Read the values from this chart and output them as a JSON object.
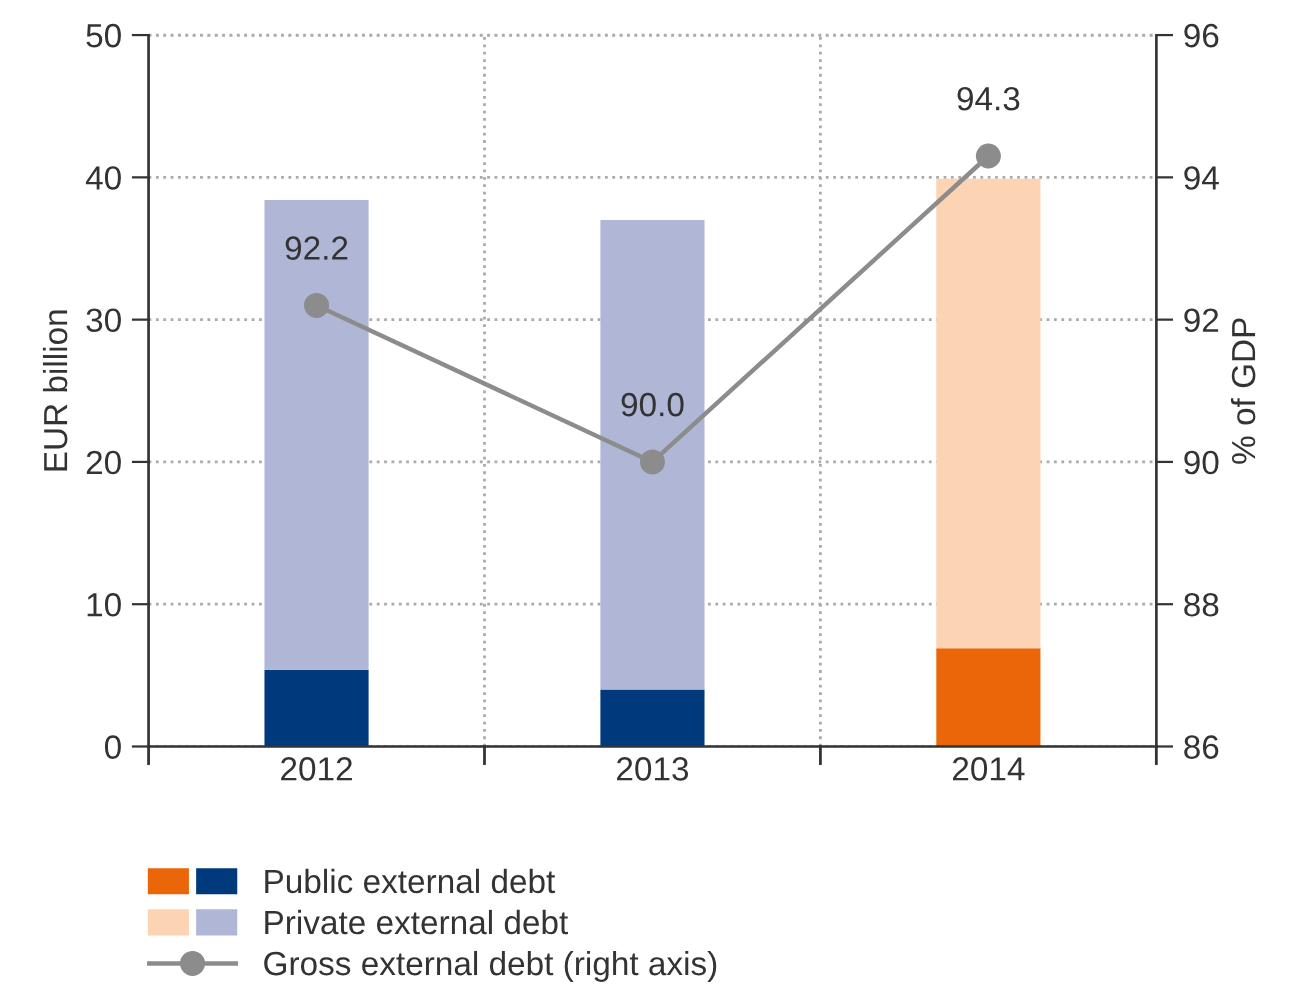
{
  "chart_data": {
    "type": "bar",
    "stacked": true,
    "categories": [
      "2012",
      "2013",
      "2014"
    ],
    "ylabel": "EUR billion",
    "y2label": "% of GDP",
    "ylim": [
      0,
      50
    ],
    "yticks": [
      0,
      10,
      20,
      30,
      40,
      50
    ],
    "y2lim": [
      86,
      96
    ],
    "y2ticks": [
      86,
      88,
      90,
      92,
      94,
      96
    ],
    "grid": true,
    "legend": "bottom",
    "series": [
      {
        "name": "Public external debt",
        "values": [
          5.4,
          4.0,
          6.9
        ],
        "colors": [
          "#003a7d",
          "#003a7d",
          "#eb6608"
        ]
      },
      {
        "name": "Private external debt",
        "values": [
          33.0,
          33.0,
          33.0
        ],
        "colors": [
          "#b0b7d6",
          "#b0b7d6",
          "#fcd3b3"
        ]
      },
      {
        "name": "Gross external debt (right axis)",
        "type": "line",
        "axis": "y2",
        "color": "#8c8c8c",
        "marker": "circle",
        "values": [
          92.2,
          90.0,
          94.3
        ],
        "value_labels": [
          "92.2",
          "90.0",
          "94.3"
        ]
      }
    ]
  }
}
